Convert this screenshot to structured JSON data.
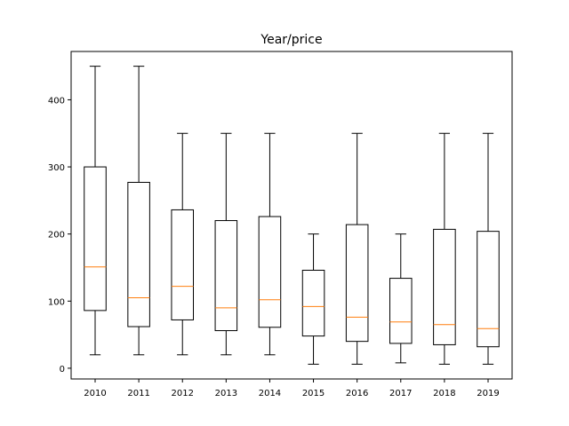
{
  "chart_data": {
    "type": "box",
    "title": "Year/price",
    "xlabel": "",
    "ylabel": "",
    "categories": [
      "2010",
      "2011",
      "2012",
      "2013",
      "2014",
      "2015",
      "2016",
      "2017",
      "2018",
      "2019"
    ],
    "boxes": [
      {
        "whisker_low": 20,
        "q1": 86,
        "median": 151,
        "q3": 300,
        "whisker_high": 450
      },
      {
        "whisker_low": 20,
        "q1": 62,
        "median": 105,
        "q3": 277,
        "whisker_high": 450
      },
      {
        "whisker_low": 20,
        "q1": 72,
        "median": 122,
        "q3": 236,
        "whisker_high": 350
      },
      {
        "whisker_low": 20,
        "q1": 56,
        "median": 90,
        "q3": 220,
        "whisker_high": 350
      },
      {
        "whisker_low": 20,
        "q1": 61,
        "median": 102,
        "q3": 226,
        "whisker_high": 350
      },
      {
        "whisker_low": 6,
        "q1": 48,
        "median": 92,
        "q3": 146,
        "whisker_high": 200
      },
      {
        "whisker_low": 6,
        "q1": 40,
        "median": 76,
        "q3": 214,
        "whisker_high": 350
      },
      {
        "whisker_low": 8,
        "q1": 37,
        "median": 69,
        "q3": 134,
        "whisker_high": 200
      },
      {
        "whisker_low": 6,
        "q1": 35,
        "median": 65,
        "q3": 207,
        "whisker_high": 350
      },
      {
        "whisker_low": 6,
        "q1": 32,
        "median": 59,
        "q3": 204,
        "whisker_high": 350
      }
    ],
    "yticks": [
      0,
      100,
      200,
      300,
      400
    ],
    "ylim": [
      -16,
      472
    ],
    "grid": false,
    "colors": {
      "box": "#000000",
      "median": "#ff7f0e"
    }
  }
}
